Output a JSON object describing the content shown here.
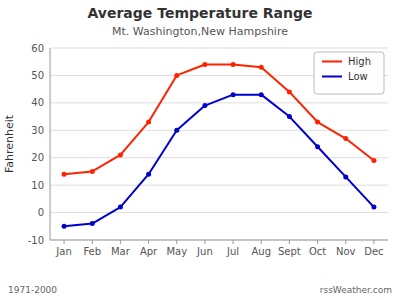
{
  "chart_data": {
    "type": "line",
    "title": "Average Temperature Range",
    "subtitle": "Mt. Washington,New Hampshire",
    "y_label": "Fahrenheit",
    "annotations": [
      "1971-2000",
      "rssWeather.com"
    ],
    "categories": [
      "Jan",
      "Feb",
      "Mar",
      "Apr",
      "May",
      "Jun",
      "Jul",
      "Aug",
      "Sept",
      "Oct",
      "Nov",
      "Dec"
    ],
    "series": [
      {
        "name": "High",
        "color": "#ff2200",
        "values": [
          14,
          15,
          21,
          33,
          50,
          54,
          54,
          53,
          44,
          33,
          27,
          19
        ]
      },
      {
        "name": "Low",
        "color": "#0000cc",
        "values": [
          -5,
          -4,
          2,
          14,
          30,
          39,
          43,
          43,
          35,
          24,
          13,
          2
        ]
      }
    ],
    "ylim": [
      -10,
      60
    ],
    "yticks": [
      -10,
      0,
      10,
      20,
      30,
      40,
      50,
      60
    ],
    "grid": true,
    "legend": "upper right",
    "marker": "circle"
  }
}
